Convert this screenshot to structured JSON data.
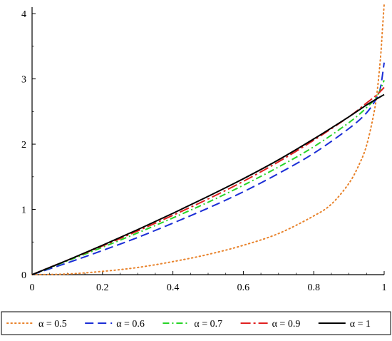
{
  "chart_data": {
    "type": "line",
    "title": "",
    "xlabel": "",
    "ylabel": "",
    "xlim": [
      0,
      1
    ],
    "ylim": [
      0,
      4.1
    ],
    "grid": false,
    "legend_position": "bottom",
    "x_ticks": [
      "0",
      "0.2",
      "0.4",
      "0.6",
      "0.8",
      "1"
    ],
    "y_ticks": [
      "0",
      "1",
      "2",
      "3",
      "4"
    ],
    "series": [
      {
        "name": "α = 0.5",
        "color": "#e8822a",
        "style": "dotted",
        "x": [
          0,
          0.1,
          0.2,
          0.3,
          0.4,
          0.5,
          0.6,
          0.7,
          0.8,
          0.85,
          0.9,
          0.93,
          0.95,
          0.97,
          0.98,
          0.99,
          0.995,
          1.0
        ],
        "y": [
          0,
          0.01,
          0.05,
          0.11,
          0.2,
          0.31,
          0.45,
          0.63,
          0.9,
          1.08,
          1.4,
          1.7,
          1.98,
          2.45,
          2.8,
          3.35,
          3.75,
          4.2
        ]
      },
      {
        "name": "α = 0.6",
        "color": "#1b2ed6",
        "style": "dashed",
        "x": [
          0,
          0.1,
          0.2,
          0.3,
          0.4,
          0.5,
          0.6,
          0.7,
          0.8,
          0.9,
          0.95,
          0.98,
          0.99,
          1.0
        ],
        "y": [
          0,
          0.18,
          0.37,
          0.57,
          0.79,
          1.02,
          1.27,
          1.55,
          1.86,
          2.24,
          2.48,
          2.72,
          2.88,
          3.25
        ]
      },
      {
        "name": "α = 0.7",
        "color": "#27d427",
        "style": "dashdot",
        "x": [
          0,
          0.1,
          0.2,
          0.3,
          0.4,
          0.5,
          0.6,
          0.7,
          0.8,
          0.9,
          0.95,
          0.98,
          1.0
        ],
        "y": [
          0,
          0.21,
          0.42,
          0.64,
          0.87,
          1.11,
          1.37,
          1.65,
          1.96,
          2.33,
          2.56,
          2.74,
          2.98
        ]
      },
      {
        "name": "α = 0.9",
        "color": "#e02020",
        "style": "longdashdot",
        "x": [
          0,
          0.1,
          0.2,
          0.3,
          0.4,
          0.5,
          0.6,
          0.7,
          0.8,
          0.9,
          0.95,
          0.98,
          1.0
        ],
        "y": [
          0,
          0.22,
          0.44,
          0.67,
          0.91,
          1.16,
          1.43,
          1.73,
          2.06,
          2.42,
          2.63,
          2.76,
          2.87
        ]
      },
      {
        "name": "α = 1",
        "color": "#000000",
        "style": "solid",
        "x": [
          0,
          0.1,
          0.2,
          0.3,
          0.4,
          0.5,
          0.6,
          0.7,
          0.8,
          0.9,
          0.95,
          1.0
        ],
        "y": [
          0,
          0.22,
          0.45,
          0.69,
          0.94,
          1.2,
          1.47,
          1.76,
          2.08,
          2.42,
          2.6,
          2.76
        ]
      }
    ]
  }
}
